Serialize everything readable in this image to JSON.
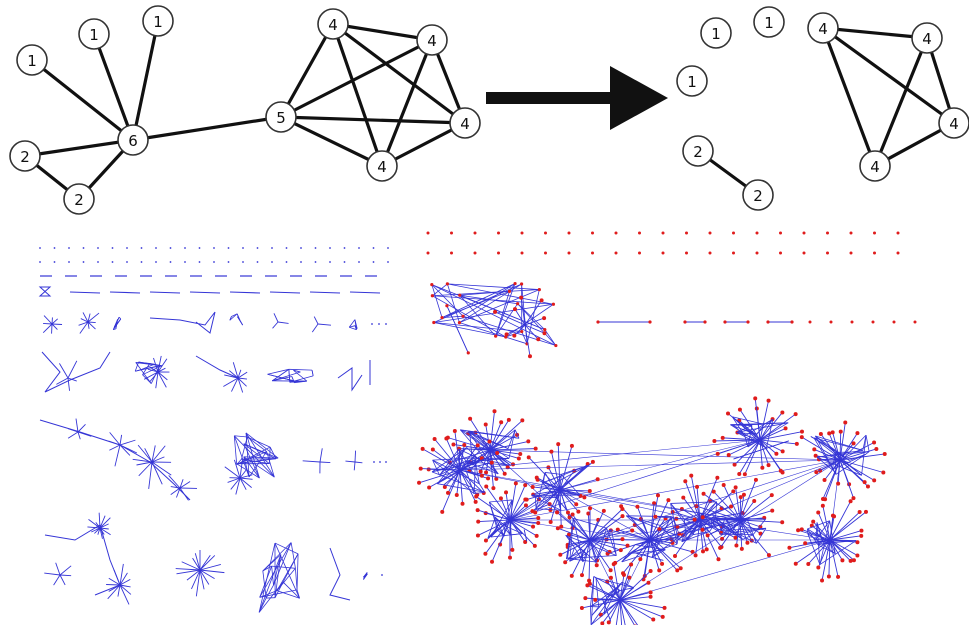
{
  "colors": {
    "edge_black": "#111111",
    "node_stroke": "#333333",
    "graph_edge_blue": "#3535d6",
    "graph_node_red": "#e01c1c"
  },
  "before_graph": {
    "nodes": [
      {
        "id": "a",
        "label": "1"
      },
      {
        "id": "b",
        "label": "1"
      },
      {
        "id": "c",
        "label": "1"
      },
      {
        "id": "d",
        "label": "6"
      },
      {
        "id": "e",
        "label": "2"
      },
      {
        "id": "f",
        "label": "2"
      },
      {
        "id": "g",
        "label": "5"
      },
      {
        "id": "h",
        "label": "4"
      },
      {
        "id": "i",
        "label": "4"
      },
      {
        "id": "j",
        "label": "4"
      },
      {
        "id": "k",
        "label": "4"
      }
    ],
    "edges": [
      [
        "a",
        "d"
      ],
      [
        "b",
        "d"
      ],
      [
        "c",
        "d"
      ],
      [
        "e",
        "d"
      ],
      [
        "f",
        "d"
      ],
      [
        "e",
        "f"
      ],
      [
        "d",
        "g"
      ],
      [
        "g",
        "h"
      ],
      [
        "g",
        "i"
      ],
      [
        "g",
        "j"
      ],
      [
        "g",
        "k"
      ],
      [
        "h",
        "i"
      ],
      [
        "h",
        "j"
      ],
      [
        "h",
        "k"
      ],
      [
        "i",
        "j"
      ],
      [
        "i",
        "k"
      ],
      [
        "j",
        "k"
      ]
    ]
  },
  "arrow_icon": "right-arrow",
  "after_graph": {
    "nodes": [
      {
        "id": "p",
        "label": "1"
      },
      {
        "id": "q",
        "label": "1"
      },
      {
        "id": "r",
        "label": "1"
      },
      {
        "id": "s",
        "label": "2"
      },
      {
        "id": "t",
        "label": "2"
      },
      {
        "id": "u",
        "label": "4"
      },
      {
        "id": "v",
        "label": "4"
      },
      {
        "id": "w",
        "label": "4"
      },
      {
        "id": "x",
        "label": "4"
      }
    ],
    "edges": [
      [
        "s",
        "t"
      ],
      [
        "u",
        "v"
      ],
      [
        "u",
        "w"
      ],
      [
        "u",
        "x"
      ],
      [
        "v",
        "w"
      ],
      [
        "v",
        "x"
      ],
      [
        "w",
        "x"
      ]
    ]
  }
}
